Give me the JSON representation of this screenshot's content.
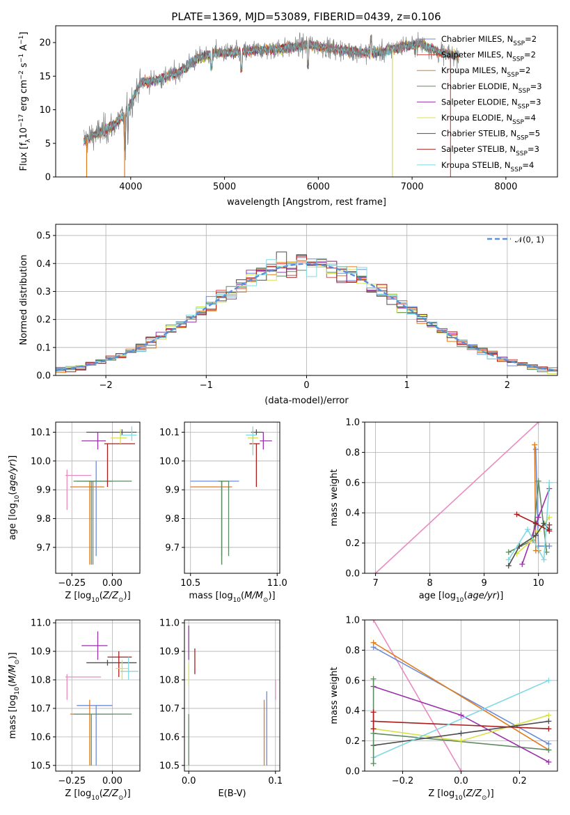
{
  "chart_data": [
    {
      "id": "spectrum",
      "type": "line",
      "title": "PLATE=1369, MJD=53089, FIBERID=0439, z=0.106",
      "xlabel": "wavelength [Angstrom, rest frame]",
      "ylabel": "Flux [f_λ10^-17 erg cm^-2 s^-1 A^-1]",
      "xlim": [
        3200,
        8550
      ],
      "ylim": [
        0,
        22.5
      ],
      "xticks": [
        4000,
        5000,
        6000,
        7000,
        8000
      ],
      "yticks": [
        0,
        5,
        10,
        15,
        20
      ],
      "grid": false,
      "legend_position": "right",
      "data_envelope": {
        "x": [
          3500,
          3650,
          3800,
          3950,
          4100,
          4300,
          4500,
          4700,
          4900,
          5100,
          5300,
          5500,
          5700,
          5900,
          6100,
          6300,
          6500,
          6700,
          6900,
          7100,
          7300,
          7500
        ],
        "y": [
          5.5,
          6.5,
          7.5,
          9.5,
          14.0,
          14.5,
          15.5,
          17.5,
          18.5,
          18.5,
          18.8,
          19.0,
          19.2,
          19.8,
          19.2,
          18.8,
          18.5,
          18.6,
          19.5,
          19.8,
          18.5,
          18.0
        ]
      },
      "series": [
        {
          "name": "Chabrier MILES, N_SSP=2",
          "color": "#6b8bd6"
        },
        {
          "name": "Salpeter MILES, N_SSP=2",
          "color": "#d8504c"
        },
        {
          "name": "Kroupa MILES, N_SSP=2",
          "color": "#e07b1a"
        },
        {
          "name": "Chabrier ELODIE, N_SSP=3",
          "color": "#5e8a63"
        },
        {
          "name": "Salpeter ELODIE, N_SSP=3",
          "color": "#9932a8"
        },
        {
          "name": "Kroupa ELODIE, N_SSP=4",
          "color": "#d8e04a"
        },
        {
          "name": "Chabrier STELIB, N_SSP=5",
          "color": "#4d4d4d"
        },
        {
          "name": "Salpeter STELIB, N_SSP=3",
          "color": "#aa1c1c"
        },
        {
          "name": "Kroupa STELIB, N_SSP=4",
          "color": "#7fd9e3"
        }
      ]
    },
    {
      "id": "residuals",
      "type": "line",
      "xlabel": "(data-model)/error",
      "ylabel": "Normed distribution",
      "xlim": [
        -2.5,
        2.5
      ],
      "ylim": [
        0,
        0.54
      ],
      "xticks": [
        -2,
        -1,
        0,
        1,
        2
      ],
      "yticks": [
        0.0,
        0.1,
        0.2,
        0.3,
        0.4,
        0.5
      ],
      "grid": true,
      "legend_position": "upper right",
      "gaussian": {
        "name": "𝒩(0, 1)",
        "color": "#5b8fd9"
      },
      "hist_bin_width": 0.1
    },
    {
      "id": "age-vs-Z",
      "type": "scatter",
      "xlabel": "Z [log10(Z/Z⊙)]",
      "ylabel": "age [log10(age/yr)]",
      "xlim": [
        -0.35,
        0.17
      ],
      "ylim": [
        9.61,
        10.135
      ],
      "xticks": [
        -0.25,
        0.0
      ],
      "yticks": [
        9.7,
        9.8,
        9.9,
        10.0,
        10.1
      ],
      "grid": true,
      "points": [
        {
          "x": -0.12,
          "y": 9.93,
          "xlo": -0.15,
          "xhi": 0.0,
          "ylo": 9.64,
          "yhi": 9.93,
          "color": "#5e8a63"
        },
        {
          "x": -0.1,
          "y": 9.93,
          "xlo": -0.22,
          "xhi": 0.0,
          "ylo": 9.67,
          "yhi": 10.0,
          "color": "#6b8bd6"
        },
        {
          "x": -0.14,
          "y": 9.91,
          "xlo": -0.26,
          "xhi": -0.05,
          "ylo": 9.64,
          "yhi": 9.93,
          "color": "#e07b1a"
        },
        {
          "x": -0.13,
          "y": 9.93,
          "xlo": -0.24,
          "xhi": 0.12,
          "ylo": 9.64,
          "yhi": 9.93,
          "color": "#5e8a63"
        },
        {
          "x": -0.28,
          "y": 9.95,
          "xlo": -0.29,
          "xhi": -0.13,
          "ylo": 9.83,
          "yhi": 9.97,
          "color": "#e88bbf"
        },
        {
          "x": -0.09,
          "y": 10.07,
          "xlo": -0.19,
          "xhi": -0.04,
          "ylo": 10.04,
          "yhi": 10.1,
          "color": "#9932a8"
        },
        {
          "x": 0.06,
          "y": 10.1,
          "xlo": -0.16,
          "xhi": 0.15,
          "ylo": 10.09,
          "yhi": 10.11,
          "color": "#4d4d4d"
        },
        {
          "x": -0.03,
          "y": 10.06,
          "xlo": -0.05,
          "xhi": 0.14,
          "ylo": 9.91,
          "yhi": 10.06,
          "color": "#aa1c1c"
        },
        {
          "x": 0.05,
          "y": 10.08,
          "xlo": -0.01,
          "xhi": 0.09,
          "ylo": 10.06,
          "yhi": 10.11,
          "color": "#d8e04a"
        },
        {
          "x": 0.12,
          "y": 10.09,
          "xlo": 0.05,
          "xhi": 0.15,
          "ylo": 10.07,
          "yhi": 10.12,
          "color": "#7fd9e3"
        }
      ]
    },
    {
      "id": "age-vs-mass",
      "type": "scatter",
      "xlabel": "mass [log10(M/M⊙)]",
      "ylabel": "",
      "xlim": [
        10.465,
        11.015
      ],
      "ylim": [
        9.61,
        10.135
      ],
      "xticks": [
        10.5,
        11.0
      ],
      "yticks": [
        9.7,
        9.8,
        9.9,
        10.0,
        10.1
      ],
      "grid": true,
      "points": [
        {
          "x": 10.68,
          "y": 9.93,
          "xlo": 10.5,
          "xhi": 10.78,
          "ylo": 9.67,
          "yhi": 9.93,
          "color": "#6b8bd6"
        },
        {
          "x": 10.68,
          "y": 9.91,
          "xlo": 10.5,
          "xhi": 10.74,
          "ylo": 9.64,
          "yhi": 9.93,
          "color": "#e07b1a"
        },
        {
          "x": 10.72,
          "y": 9.93,
          "xlo": 10.66,
          "xhi": 10.72,
          "ylo": 9.67,
          "yhi": 9.93,
          "color": "#5e8a63"
        },
        {
          "x": 10.68,
          "y": 9.93,
          "xlo": 10.68,
          "xhi": 10.68,
          "ylo": 9.64,
          "yhi": 9.93,
          "color": "#5e8a63"
        },
        {
          "x": 10.92,
          "y": 10.07,
          "xlo": 10.9,
          "xhi": 10.97,
          "ylo": 10.04,
          "yhi": 10.1,
          "color": "#9932a8"
        },
        {
          "x": 10.88,
          "y": 10.1,
          "xlo": 10.85,
          "xhi": 10.92,
          "ylo": 10.09,
          "yhi": 10.11,
          "color": "#4d4d4d"
        },
        {
          "x": 10.88,
          "y": 10.06,
          "xlo": 10.84,
          "xhi": 10.9,
          "ylo": 9.91,
          "yhi": 10.06,
          "color": "#aa1c1c"
        },
        {
          "x": 10.86,
          "y": 10.08,
          "xlo": 10.83,
          "xhi": 10.89,
          "ylo": 10.04,
          "yhi": 10.11,
          "color": "#d8e04a"
        },
        {
          "x": 10.86,
          "y": 10.09,
          "xlo": 10.82,
          "xhi": 10.88,
          "ylo": 10.02,
          "yhi": 10.12,
          "color": "#7fd9e3"
        }
      ]
    },
    {
      "id": "massweight-vs-age",
      "type": "line",
      "xlabel": "age [log10(age/yr)]",
      "ylabel": "mass weight",
      "xlim": [
        6.8,
        10.35
      ],
      "ylim": [
        0,
        1.0
      ],
      "xticks": [
        7,
        8,
        9,
        10
      ],
      "yticks": [
        0.0,
        0.2,
        0.4,
        0.6,
        0.8,
        1.0
      ],
      "grid": true,
      "series": [
        {
          "color": "#e88bbf",
          "x": [
            7.0,
            10.0
          ],
          "y": [
            0.0,
            1.0
          ]
        },
        {
          "color": "#6b8bd6",
          "x": [
            9.95,
            10.0,
            10.2
          ],
          "y": [
            0.82,
            0.18,
            0.18
          ]
        },
        {
          "color": "#e07b1a",
          "x": [
            9.93,
            9.95,
            10.0
          ],
          "y": [
            0.85,
            0.15,
            0.15
          ]
        },
        {
          "color": "#5e8a63",
          "x": [
            9.45,
            9.9,
            10.0,
            10.15
          ],
          "y": [
            0.14,
            0.22,
            0.61,
            0.14
          ]
        },
        {
          "color": "#9932a8",
          "x": [
            9.7,
            10.0,
            10.2
          ],
          "y": [
            0.06,
            0.37,
            0.56
          ]
        },
        {
          "color": "#d8e04a",
          "x": [
            9.6,
            9.85,
            10.0,
            10.2
          ],
          "y": [
            0.13,
            0.21,
            0.28,
            0.37
          ]
        },
        {
          "color": "#4d4d4d",
          "x": [
            9.45,
            9.65,
            9.95,
            10.1,
            10.2
          ],
          "y": [
            0.05,
            0.18,
            0.25,
            0.33,
            0.29
          ]
        },
        {
          "color": "#aa1c1c",
          "x": [
            9.6,
            9.95,
            10.2,
            10.2
          ],
          "y": [
            0.39,
            0.33,
            0.28,
            0.32
          ]
        },
        {
          "color": "#7fd9e3",
          "x": [
            9.45,
            9.8,
            10.1,
            10.2
          ],
          "y": [
            0.09,
            0.29,
            0.09,
            0.6
          ]
        }
      ]
    },
    {
      "id": "mass-vs-Z",
      "type": "scatter",
      "xlabel": "Z [log10(Z/Z⊙)]",
      "ylabel": "mass [log10(M/M⊙)]",
      "xlim": [
        -0.35,
        0.17
      ],
      "ylim": [
        10.48,
        11.01
      ],
      "xticks": [
        -0.25,
        0.0
      ],
      "yticks": [
        10.5,
        10.6,
        10.7,
        10.8,
        10.9,
        11.0
      ],
      "grid": true,
      "points": [
        {
          "x": -0.1,
          "y": 10.71,
          "xlo": -0.22,
          "xhi": 0.0,
          "ylo": 10.5,
          "yhi": 10.71,
          "color": "#6b8bd6"
        },
        {
          "x": -0.14,
          "y": 10.68,
          "xlo": -0.26,
          "xhi": 0.0,
          "ylo": 10.5,
          "yhi": 10.73,
          "color": "#e07b1a"
        },
        {
          "x": -0.13,
          "y": 10.68,
          "xlo": -0.24,
          "xhi": 0.12,
          "ylo": 10.5,
          "yhi": 10.68,
          "color": "#5e8a63"
        },
        {
          "x": -0.28,
          "y": 10.81,
          "xlo": -0.29,
          "xhi": -0.07,
          "ylo": 10.73,
          "yhi": 10.82,
          "color": "#e88bbf"
        },
        {
          "x": -0.09,
          "y": 10.92,
          "xlo": -0.19,
          "xhi": -0.03,
          "ylo": 10.87,
          "yhi": 10.97,
          "color": "#9932a8"
        },
        {
          "x": -0.03,
          "y": 10.86,
          "xlo": -0.16,
          "xhi": 0.15,
          "ylo": 10.85,
          "yhi": 10.87,
          "color": "#4d4d4d"
        },
        {
          "x": 0.04,
          "y": 10.88,
          "xlo": -0.03,
          "xhi": 0.12,
          "ylo": 10.81,
          "yhi": 10.9,
          "color": "#aa1c1c"
        },
        {
          "x": 0.06,
          "y": 10.84,
          "xlo": 0.02,
          "xhi": 0.1,
          "ylo": 10.8,
          "yhi": 10.87,
          "color": "#d8e04a"
        },
        {
          "x": 0.1,
          "y": 10.83,
          "xlo": 0.05,
          "xhi": 0.16,
          "ylo": 10.8,
          "yhi": 10.88,
          "color": "#7fd9e3"
        }
      ]
    },
    {
      "id": "mass-vs-EBV",
      "type": "scatter",
      "xlabel": "E(B-V)",
      "ylabel": "",
      "xlim": [
        -0.005,
        0.105
      ],
      "ylim": [
        10.48,
        11.01
      ],
      "xticks": [
        0.0,
        0.1
      ],
      "yticks": [
        10.5,
        10.6,
        10.7,
        10.8,
        10.9,
        11.0
      ],
      "grid": true,
      "points": [
        {
          "x": 0.0,
          "y": 10.92,
          "ylo": 10.87,
          "yhi": 10.99,
          "color": "#9932a8"
        },
        {
          "x": 0.0,
          "y": 10.6,
          "ylo": 10.5,
          "yhi": 10.68,
          "color": "#5e8a63"
        },
        {
          "x": 0.0,
          "y": 10.81,
          "ylo": 10.78,
          "yhi": 10.86,
          "color": "#d8e04a"
        },
        {
          "x": 0.007,
          "y": 10.86,
          "ylo": 10.82,
          "yhi": 10.91,
          "color": "#aa1c1c"
        },
        {
          "x": 0.087,
          "y": 10.62,
          "ylo": 10.5,
          "yhi": 10.73,
          "color": "#e07b1a"
        },
        {
          "x": 0.09,
          "y": 10.68,
          "ylo": 10.5,
          "yhi": 10.76,
          "color": "#6b8bd6"
        },
        {
          "x": 0.1,
          "y": 10.76,
          "ylo": 10.73,
          "yhi": 10.8,
          "color": "#e88bbf"
        }
      ]
    },
    {
      "id": "massweight-vs-Z",
      "type": "line",
      "xlabel": "Z [log10(Z/Z⊙)]",
      "ylabel": "mass weight",
      "xlim": [
        -0.33,
        0.33
      ],
      "ylim": [
        0,
        1.0
      ],
      "xticks": [
        -0.2,
        0.0,
        0.2
      ],
      "yticks": [
        0.0,
        0.2,
        0.4,
        0.6,
        0.8,
        1.0
      ],
      "grid": true,
      "series": [
        {
          "color": "#e88bbf",
          "x": [
            -0.3,
            0.0
          ],
          "y": [
            1.0,
            0.0
          ]
        },
        {
          "color": "#6b8bd6",
          "x": [
            -0.3,
            0.3
          ],
          "y": [
            0.82,
            0.18
          ]
        },
        {
          "color": "#e07b1a",
          "x": [
            -0.3,
            0.3
          ],
          "y": [
            0.85,
            0.14
          ]
        },
        {
          "color": "#5e8a63",
          "x": [
            -0.3,
            0.3
          ],
          "y": [
            0.25,
            0.14
          ]
        },
        {
          "color": "#9932a8",
          "x": [
            -0.3,
            0.0,
            0.3
          ],
          "y": [
            0.56,
            0.37,
            0.06
          ]
        },
        {
          "color": "#d8e04a",
          "x": [
            -0.3,
            0.0,
            0.3
          ],
          "y": [
            0.28,
            0.2,
            0.37
          ]
        },
        {
          "color": "#4d4d4d",
          "x": [
            -0.3,
            0.0,
            0.3
          ],
          "y": [
            0.17,
            0.25,
            0.33
          ]
        },
        {
          "color": "#aa1c1c",
          "x": [
            -0.3,
            0.3
          ],
          "y": [
            0.33,
            0.28
          ]
        },
        {
          "color": "#7fd9e3",
          "x": [
            -0.3,
            0.3
          ],
          "y": [
            0.09,
            0.6
          ]
        },
        {
          "color": "#5e8a63",
          "x": [
            -0.3,
            -0.3
          ],
          "y": [
            0.05,
            0.61
          ]
        },
        {
          "color": "#aa1c1c",
          "x": [
            -0.3,
            -0.3
          ],
          "y": [
            0.28,
            0.39
          ]
        }
      ]
    }
  ]
}
